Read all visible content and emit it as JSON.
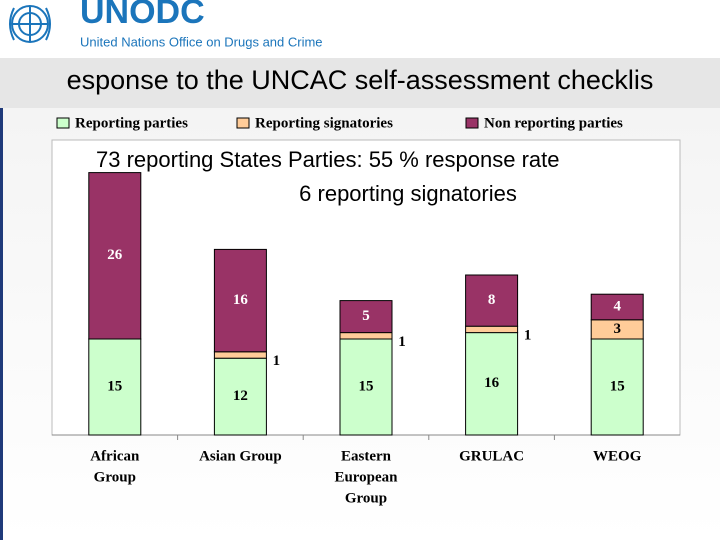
{
  "logo": {
    "acronym": "UNODC",
    "name": "United Nations Office on Drugs and Crime"
  },
  "chart_data": {
    "type": "bar",
    "stacked": true,
    "title": "esponse to the UNCAC self-assessment checklis",
    "annotations": [
      "73 reporting States Parties: 55 % response rate",
      "6 reporting signatories"
    ],
    "categories": [
      [
        "African",
        "Group"
      ],
      [
        "Asian Group"
      ],
      [
        "Eastern",
        "European",
        "Group"
      ],
      [
        "GRULAC"
      ],
      [
        "WEOG"
      ]
    ],
    "series": [
      {
        "name": "Reporting parties",
        "color": "#ccffcc",
        "values": [
          15,
          12,
          15,
          16,
          15
        ]
      },
      {
        "name": "Reporting signatories",
        "color": "#ffcc99",
        "values": [
          null,
          1,
          1,
          1,
          3
        ]
      },
      {
        "name": "Non reporting parties",
        "color": "#993366",
        "values": [
          26,
          16,
          5,
          8,
          4
        ]
      }
    ],
    "ylim": [
      0,
      45
    ]
  }
}
